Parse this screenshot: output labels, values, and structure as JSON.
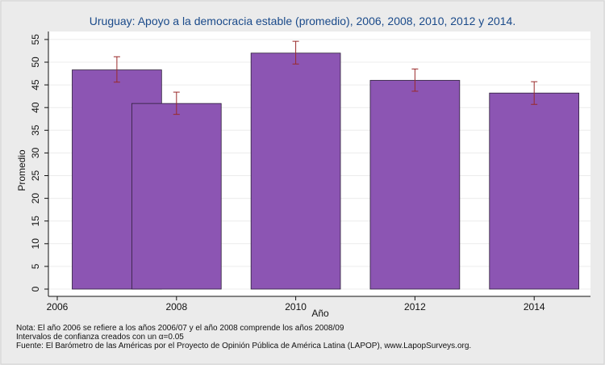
{
  "chart_data": {
    "type": "bar",
    "title": "Uruguay: Apoyo a la democracia estable (promedio), 2006, 2008, 2010, 2012 y 2014.",
    "xlabel": "Año",
    "ylabel": "Promedio",
    "xlim": [
      2006,
      2015
    ],
    "ylim": [
      0,
      55
    ],
    "xticks": [
      2006,
      2008,
      2010,
      2012,
      2014
    ],
    "yticks": [
      0,
      5,
      10,
      15,
      20,
      25,
      30,
      35,
      40,
      45,
      50,
      55
    ],
    "grid": "horizontal",
    "bar_color": "#8c55b3",
    "error_color": "#9a2a2a",
    "bars": [
      {
        "x_start": 2006.25,
        "x_end": 2007.75,
        "value": 48.3,
        "ci_low": 45.6,
        "ci_high": 51.2
      },
      {
        "x_start": 2007.25,
        "x_end": 2008.75,
        "value": 40.9,
        "ci_low": 38.5,
        "ci_high": 43.4
      },
      {
        "x_start": 2009.25,
        "x_end": 2010.75,
        "value": 52.0,
        "ci_low": 49.6,
        "ci_high": 54.6
      },
      {
        "x_start": 2011.25,
        "x_end": 2012.75,
        "value": 46.0,
        "ci_low": 43.6,
        "ci_high": 48.5
      },
      {
        "x_start": 2013.25,
        "x_end": 2014.75,
        "value": 43.2,
        "ci_low": 40.7,
        "ci_high": 45.7
      }
    ]
  },
  "notes": {
    "line1": "Nota: El año 2006 se refiere a los años 2006/07 y el año 2008 comprende los años 2008/09",
    "line2": "Intervalos de confianza creados con un α=0.05",
    "line3": "Fuente: El Barómetro de las Américas por el Proyecto de Opinión Pública de América Latina (LAPOP), www.LapopSurveys.org."
  }
}
